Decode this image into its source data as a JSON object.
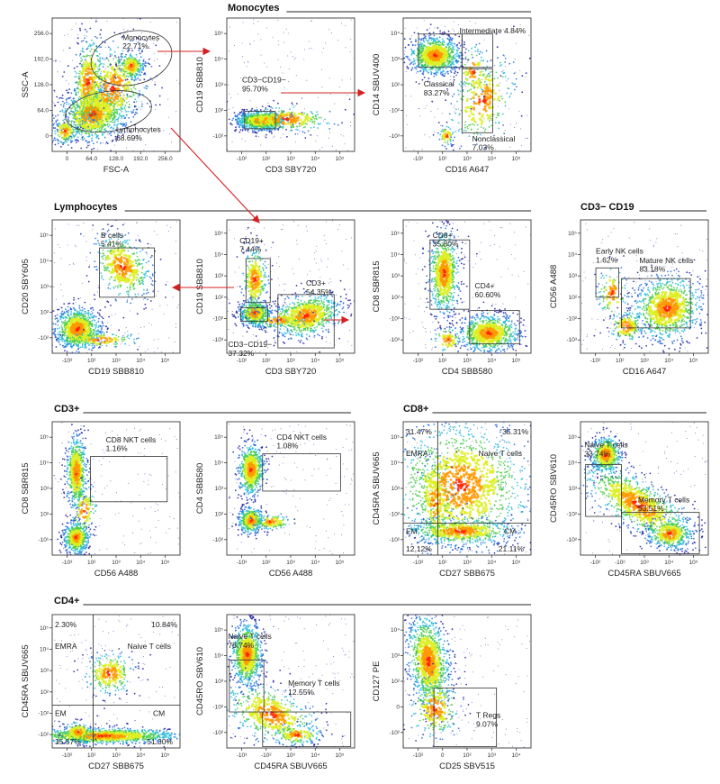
{
  "sections": [
    {
      "id": "mono",
      "title": "Monocytes"
    },
    {
      "id": "lymph",
      "title": "Lymphocytes"
    },
    {
      "id": "nk",
      "title": "CD3− CD19"
    },
    {
      "id": "cd3",
      "title": "CD3+"
    },
    {
      "id": "cd8",
      "title": "CD8+"
    },
    {
      "id": "cd4",
      "title": "CD4+"
    }
  ],
  "colors": {
    "frame": "#222222",
    "gate": "#333333",
    "arrow": "#d42020",
    "density": [
      "#1a1aa0",
      "#2266dd",
      "#22b8d8",
      "#44cc44",
      "#ddee22",
      "#ff9900",
      "#ff2200"
    ]
  },
  "plots": [
    {
      "id": "p1",
      "title": "",
      "xlabel": "FSC-A",
      "ylabel": "SSC-A",
      "xticks": [
        "0",
        "64.0",
        "128.0",
        "192.0",
        "256.0"
      ],
      "yticks": [
        "0",
        "64.0",
        "128.0",
        "192.0",
        "256.0"
      ],
      "gates": [
        {
          "label": "Monocytes\n22.71%"
        },
        {
          "label": "Lymphocytes\n68.69%"
        }
      ]
    },
    {
      "id": "p2",
      "xlabel": "CD3 SBY720",
      "ylabel": "CD19 SBB810",
      "xticks": [
        "-10²",
        "10²",
        "10³",
        "10⁴",
        "10⁵"
      ],
      "yticks": [
        "-10²",
        "10²",
        "10³",
        "10⁴",
        "10⁵"
      ],
      "gates": [
        {
          "label": "CD3−CD19−\n95.70%"
        }
      ]
    },
    {
      "id": "p3",
      "xlabel": "CD16 A647",
      "ylabel": "CD14 SBUV400",
      "xticks": [
        "-10²",
        "10²",
        "10³",
        "10⁴",
        "10⁵"
      ],
      "yticks": [
        "-10³",
        "-10²",
        "10²",
        "10³",
        "10⁴"
      ],
      "gates": [
        {
          "label": "Intermediate 4.84%"
        },
        {
          "label": "Classical\n83.27%"
        },
        {
          "label": "Nonclassical\n7.03%"
        }
      ]
    },
    {
      "id": "p4",
      "xlabel": "CD19 SBB810",
      "ylabel": "CD20 SBY605",
      "xticks": [
        "-10³",
        "10²",
        "10³",
        "10⁴",
        "10⁵"
      ],
      "yticks": [
        "-10²",
        "10²",
        "10³",
        "10⁴",
        "10⁵"
      ],
      "gates": [
        {
          "label": "B cells\n5.41%"
        }
      ]
    },
    {
      "id": "p5",
      "xlabel": "CD3 SBY720",
      "ylabel": "CD19 SBB810",
      "xticks": [
        "-10²",
        "10²",
        "10³",
        "10⁴",
        "10⁵"
      ],
      "yticks": [
        "-10³",
        "-10²",
        "10²",
        "10³",
        "10⁴",
        "10⁵"
      ],
      "gates": [
        {
          "label": "CD19+\n7.44%"
        },
        {
          "label": "CD3+\n54.35%"
        },
        {
          "label": "CD3−CD19−\n37.32%"
        }
      ]
    },
    {
      "id": "p6",
      "xlabel": "CD4 SBB580",
      "ylabel": "CD8 SBR815",
      "xticks": [
        "-10²",
        "10²",
        "10³",
        "10⁴",
        "10⁵"
      ],
      "yticks": [
        "-10³",
        "-10²",
        "10²",
        "10³",
        "10⁴",
        "10⁵"
      ],
      "gates": [
        {
          "label": "CD8+\n35.80%"
        },
        {
          "label": "CD4+\n60.60%"
        }
      ]
    },
    {
      "id": "p7",
      "xlabel": "CD16 A647",
      "ylabel": "CD56 A488",
      "xticks": [
        "-10²",
        "10²",
        "10³",
        "10⁴",
        "10⁵"
      ],
      "yticks": [
        "-10³",
        "-10²",
        "10²",
        "10³",
        "10⁴",
        "10⁵"
      ],
      "gates": [
        {
          "label": "Early NK cells\n1.62%"
        },
        {
          "label": "Mature NK cells\n83.18%"
        }
      ]
    },
    {
      "id": "p8",
      "xlabel": "CD56 A488",
      "ylabel": "CD8 SBR815",
      "xticks": [
        "-10³",
        "10²",
        "10³",
        "10⁴",
        "10⁵"
      ],
      "yticks": [
        "-10¹",
        "10²",
        "10³",
        "10⁴",
        "10⁵"
      ],
      "gates": [
        {
          "label": "CD8 NKT cells\n1.16%"
        }
      ]
    },
    {
      "id": "p9",
      "xlabel": "CD56 A488",
      "ylabel": "CD4 SBB580",
      "xticks": [
        "-10³",
        "10²",
        "10³",
        "10⁴",
        "10⁵"
      ],
      "yticks": [
        "-10²",
        "10²",
        "10³",
        "10⁴",
        "10⁵"
      ],
      "gates": [
        {
          "label": "CD4 NKT cells\n1.08%"
        }
      ]
    },
    {
      "id": "p10",
      "xlabel": "CD27 SBB675",
      "ylabel": "CD45RA SBUV665",
      "xticks": [
        "-10²",
        "10²",
        "10³",
        "10⁴",
        "10⁵"
      ],
      "yticks": [
        "-10²",
        "-10²",
        "10³",
        "10⁴",
        "10⁵"
      ],
      "quadrants": [
        "31.47%",
        "35.31%",
        "12.12%",
        "21.11%"
      ],
      "quadLabels": [
        "EMRA",
        "Naive T cells",
        "EM",
        "CM"
      ]
    },
    {
      "id": "p11",
      "xlabel": "CD45RA SBUV665",
      "ylabel": "CD45RO SBV610",
      "xticks": [
        "-10²",
        "-10²",
        "10³",
        "10⁴",
        "10⁵"
      ],
      "yticks": [
        "-10²",
        "-10²",
        "10³",
        "10⁴",
        "10⁵"
      ],
      "gates": [
        {
          "label": "Naive T cells\n33.74%"
        },
        {
          "label": "Memory T cells\n53.51%"
        }
      ]
    },
    {
      "id": "p12",
      "xlabel": "CD27 SBB675",
      "ylabel": "CD45RA SBUV665",
      "xticks": [
        "-10²",
        "10²",
        "10³",
        "10⁴",
        "10⁵"
      ],
      "yticks": [
        "-10²",
        "-10²",
        "10²",
        "10³",
        "10⁴",
        "10⁵"
      ],
      "quadrants": [
        "2.30%",
        "10.84%",
        "35.57%",
        "51.30%"
      ],
      "quadLabels": [
        "EMRA",
        "Naive T cells",
        "EM",
        "CM"
      ]
    },
    {
      "id": "p13",
      "xlabel": "CD45RA SBUV665",
      "ylabel": "CD45RO SBV610",
      "xticks": [
        "-10³",
        "-10²",
        "10³",
        "10⁴",
        "10⁵"
      ],
      "yticks": [
        "-10²",
        "-10²",
        "10³",
        "10⁴",
        "10⁵"
      ],
      "gates": [
        {
          "label": "Naive T cells\n78.74%"
        },
        {
          "label": "Memory T cells\n12.55%"
        }
      ]
    },
    {
      "id": "p14",
      "xlabel": "CD25 SBV515",
      "ylabel": "CD127 PE",
      "xticks": [
        "-10²",
        "0",
        "10²",
        "10³",
        "10⁴"
      ],
      "yticks": [
        "-10²",
        "0",
        "10²",
        "10³",
        "10⁴"
      ],
      "gates": [
        {
          "label": "T Regs\n9.07%"
        }
      ]
    }
  ]
}
